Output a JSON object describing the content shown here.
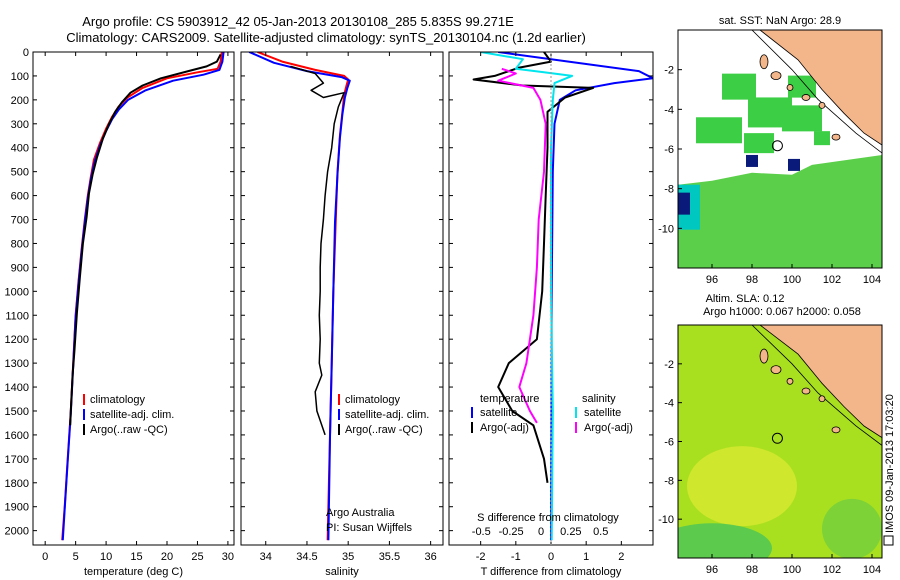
{
  "title": {
    "line1": "Argo profile: CS 5903912_42 05-Jan-2013 20130108_285 5.835S 99.271E",
    "line2": "Climatology: CARS2009. Satellite-adjusted climatology: synTS_20130104.nc (1.2d earlier)"
  },
  "colors": {
    "climatology": "#ff0000",
    "satellite": "#0000ff",
    "argo": "#000000",
    "satellite_s": "#00e5ee",
    "argo_s": "#ff00ff",
    "land": "#f3b58a",
    "sst_field": "#33cc44",
    "sla_field": "#a8e020"
  },
  "chart_data": [
    {
      "id": "temperature",
      "type": "line",
      "xlabel": "temperature (deg C)",
      "xlim": [
        -2,
        31
      ],
      "xticks": [
        0,
        5,
        10,
        15,
        20,
        25,
        30
      ],
      "ylim": [
        2060,
        0
      ],
      "yticks": [
        0,
        100,
        200,
        300,
        400,
        500,
        600,
        700,
        800,
        900,
        1000,
        1100,
        1200,
        1300,
        1400,
        1500,
        1600,
        1700,
        1800,
        1900,
        2000
      ],
      "legend": [
        "climatology",
        "satellite-adj. clim.",
        "Argo(..raw -QC)"
      ],
      "series": [
        {
          "name": "climatology",
          "color": "#ff0000",
          "width": 2,
          "points": [
            [
              29.0,
              0
            ],
            [
              28.8,
              40
            ],
            [
              28.3,
              70
            ],
            [
              25,
              85
            ],
            [
              20,
              110
            ],
            [
              16,
              150
            ],
            [
              13.5,
              190
            ],
            [
              12,
              230
            ],
            [
              11,
              270
            ],
            [
              10,
              320
            ],
            [
              9,
              380
            ],
            [
              8,
              450
            ],
            [
              7.5,
              520
            ],
            [
              7,
              600
            ],
            [
              6.5,
              700
            ],
            [
              6,
              820
            ],
            [
              5.5,
              950
            ],
            [
              5,
              1100
            ],
            [
              4.6,
              1300
            ],
            [
              4.2,
              1500
            ],
            [
              3.7,
              1700
            ],
            [
              3.2,
              1900
            ],
            [
              2.8,
              2040
            ]
          ]
        },
        {
          "name": "satellite-adj. clim.",
          "color": "#0000ff",
          "width": 2,
          "points": [
            [
              29.3,
              0
            ],
            [
              29.1,
              40
            ],
            [
              28.6,
              75
            ],
            [
              26,
              95
            ],
            [
              21,
              120
            ],
            [
              16.5,
              160
            ],
            [
              13.6,
              200
            ],
            [
              12.1,
              240
            ],
            [
              11,
              280
            ],
            [
              10,
              330
            ],
            [
              9,
              390
            ],
            [
              8.1,
              460
            ],
            [
              7.5,
              530
            ],
            [
              7,
              610
            ],
            [
              6.5,
              710
            ],
            [
              6,
              830
            ],
            [
              5.5,
              960
            ],
            [
              5,
              1110
            ],
            [
              4.6,
              1310
            ],
            [
              4.2,
              1510
            ],
            [
              3.7,
              1710
            ],
            [
              3.2,
              1910
            ],
            [
              2.9,
              2040
            ]
          ]
        },
        {
          "name": "Argo(..raw -QC)",
          "color": "#000000",
          "width": 2,
          "points": [
            [
              28.8,
              10
            ],
            [
              28.2,
              40
            ],
            [
              26.5,
              60
            ],
            [
              23.5,
              80
            ],
            [
              19,
              110
            ],
            [
              16,
              140
            ],
            [
              14,
              170
            ],
            [
              12.6,
              210
            ],
            [
              11.5,
              250
            ],
            [
              10.5,
              300
            ],
            [
              9.5,
              360
            ],
            [
              8.5,
              440
            ],
            [
              7.8,
              510
            ],
            [
              7.2,
              590
            ],
            [
              6.8,
              690
            ],
            [
              6.2,
              800
            ],
            [
              5.7,
              940
            ],
            [
              5.2,
              1090
            ],
            [
              4.8,
              1250
            ],
            [
              4.5,
              1350
            ],
            [
              4.2,
              1500
            ],
            [
              4.1,
              1560
            ]
          ]
        }
      ]
    },
    {
      "id": "salinity",
      "type": "line",
      "xlabel": "salinity",
      "xlim": [
        33.7,
        36.15
      ],
      "xticks": [
        34,
        34.5,
        35,
        35.5,
        36
      ],
      "xticklabels": [
        "34",
        "34.5",
        "35",
        "35.5",
        "36"
      ],
      "ylim": [
        2060,
        0
      ],
      "legend": [
        "climatology",
        "satellite-adj. clim.",
        "Argo(..raw -QC)"
      ],
      "series": [
        {
          "name": "climatology",
          "color": "#ff0000",
          "width": 2,
          "points": [
            [
              33.9,
              0
            ],
            [
              34.2,
              40
            ],
            [
              34.6,
              75
            ],
            [
              34.95,
              100
            ],
            [
              35.0,
              115
            ],
            [
              34.98,
              140
            ],
            [
              34.95,
              180
            ],
            [
              34.93,
              250
            ],
            [
              34.9,
              350
            ],
            [
              34.87,
              500
            ],
            [
              34.85,
              700
            ],
            [
              34.82,
              1000
            ],
            [
              34.8,
              1300
            ],
            [
              34.78,
              1600
            ],
            [
              34.75,
              2040
            ]
          ]
        },
        {
          "name": "satellite-adj. clim.",
          "color": "#0000ff",
          "width": 2,
          "points": [
            [
              33.8,
              0
            ],
            [
              34.1,
              45
            ],
            [
              34.5,
              80
            ],
            [
              34.92,
              105
            ],
            [
              35.02,
              120
            ],
            [
              34.99,
              150
            ],
            [
              34.96,
              190
            ],
            [
              34.93,
              260
            ],
            [
              34.9,
              360
            ],
            [
              34.87,
              510
            ],
            [
              34.84,
              710
            ],
            [
              34.82,
              1010
            ],
            [
              34.8,
              1310
            ],
            [
              34.78,
              1610
            ],
            [
              34.76,
              2040
            ]
          ]
        },
        {
          "name": "Argo(..raw -QC)",
          "color": "#000000",
          "width": 1.5,
          "points": [
            [
              34.3,
              60
            ],
            [
              34.6,
              90
            ],
            [
              34.7,
              130
            ],
            [
              34.55,
              160
            ],
            [
              34.7,
              190
            ],
            [
              34.95,
              170
            ],
            [
              34.88,
              230
            ],
            [
              34.83,
              300
            ],
            [
              34.8,
              400
            ],
            [
              34.75,
              500
            ],
            [
              34.72,
              600
            ],
            [
              34.7,
              700
            ],
            [
              34.67,
              800
            ],
            [
              34.66,
              900
            ],
            [
              34.66,
              1000
            ],
            [
              34.65,
              1100
            ],
            [
              34.66,
              1200
            ],
            [
              34.65,
              1300
            ],
            [
              34.68,
              1350
            ],
            [
              34.6,
              1420
            ],
            [
              34.62,
              1500
            ],
            [
              34.68,
              1560
            ],
            [
              34.72,
              1600
            ]
          ]
        }
      ]
    },
    {
      "id": "difference",
      "type": "line",
      "xlabel": "T difference from climatology",
      "xlabel_top": "S difference from climatology",
      "xlim": [
        -2.9,
        2.9
      ],
      "xticks": [
        -2,
        -1,
        0,
        1,
        2
      ],
      "xticklabels": [
        "-2",
        "-1",
        "0",
        "1",
        "2"
      ],
      "sticks": [
        -0.5,
        -0.25,
        0,
        0.25,
        0.5
      ],
      "sticklabels": [
        "-0.5",
        "-0.25",
        "0",
        "0.25",
        "0.5"
      ],
      "ylim": [
        2060,
        0
      ],
      "legend_titles": [
        "temperature",
        "salinity"
      ],
      "legend": [
        "satellite",
        "Argo(-adj)",
        "satellite",
        "Argo(-adj)"
      ],
      "series": [
        {
          "name": "T satellite",
          "color": "#0000ff",
          "width": 2,
          "points": [
            [
              -1.5,
              0
            ],
            [
              0.5,
              40
            ],
            [
              2.5,
              80
            ],
            [
              2.9,
              110
            ],
            [
              1.8,
              130
            ],
            [
              0.7,
              160
            ],
            [
              0.25,
              200
            ],
            [
              0.1,
              300
            ],
            [
              0.05,
              500
            ],
            [
              0.02,
              1000
            ],
            [
              0.0,
              2040
            ]
          ]
        },
        {
          "name": "T Argo(-adj)",
          "color": "#000000",
          "width": 2,
          "points": [
            [
              -0.2,
              0
            ],
            [
              0.0,
              40
            ],
            [
              -0.9,
              65
            ],
            [
              -1.6,
              100
            ],
            [
              -2.2,
              115
            ],
            [
              -0.8,
              140
            ],
            [
              1.2,
              150
            ],
            [
              0.4,
              190
            ],
            [
              -0.1,
              250
            ],
            [
              -0.1,
              400
            ],
            [
              -0.15,
              600
            ],
            [
              -0.2,
              800
            ],
            [
              -0.25,
              1000
            ],
            [
              -0.4,
              1200
            ],
            [
              -1.2,
              1300
            ],
            [
              -1.5,
              1400
            ],
            [
              -1.1,
              1500
            ],
            [
              -0.5,
              1560
            ],
            [
              -0.2,
              1700
            ],
            [
              -0.1,
              1800
            ]
          ]
        },
        {
          "name": "S satellite",
          "color": "#00e5ee",
          "width": 2,
          "points": [
            [
              -2.0,
              0
            ],
            [
              -0.8,
              30
            ],
            [
              -1.0,
              70
            ],
            [
              -0.2,
              85
            ],
            [
              0.6,
              100
            ],
            [
              0.1,
              130
            ],
            [
              0.05,
              200
            ],
            [
              0.0,
              400
            ],
            [
              0.0,
              1000
            ],
            [
              0.05,
              1500
            ],
            [
              0.02,
              2040
            ]
          ]
        },
        {
          "name": "S Argo(-adj)",
          "color": "#ff00ff",
          "width": 2,
          "points": [
            [
              -1.4,
              70
            ],
            [
              -1.0,
              90
            ],
            [
              -1.5,
              120
            ],
            [
              -0.5,
              150
            ],
            [
              -0.3,
              200
            ],
            [
              -0.15,
              300
            ],
            [
              -0.2,
              500
            ],
            [
              -0.35,
              700
            ],
            [
              -0.4,
              900
            ],
            [
              -0.5,
              1100
            ],
            [
              -0.7,
              1300
            ],
            [
              -0.9,
              1400
            ],
            [
              -0.6,
              1500
            ],
            [
              -0.4,
              1550
            ]
          ]
        }
      ]
    },
    {
      "id": "sst_map",
      "type": "heatmap",
      "title": "sat. SST: NaN Argo: 28.9",
      "xlim": [
        94.3,
        104.5
      ],
      "ylim": [
        -12,
        0
      ],
      "xticks": [
        96,
        98,
        100,
        102,
        104
      ],
      "yticks": [
        -2,
        -4,
        -6,
        -8,
        -10
      ],
      "argo_position": [
        99.271,
        -5.835
      ]
    },
    {
      "id": "sla_map",
      "type": "heatmap",
      "title": "Altim. SLA: 0.12",
      "subtitle": "Argo h1000: 0.067 h2000: 0.058",
      "xlim": [
        94.3,
        104.5
      ],
      "ylim": [
        -12,
        0
      ],
      "xticks": [
        96,
        98,
        100,
        102,
        104
      ],
      "yticks": [
        -2,
        -4,
        -6,
        -8,
        -10
      ],
      "argo_position": [
        99.271,
        -5.835
      ]
    }
  ],
  "credits": {
    "line1": "Argo Australia",
    "line2": "PI: Susan Wijffels",
    "stamp": "IMOS 09-Jan-2013 17:03:20"
  }
}
